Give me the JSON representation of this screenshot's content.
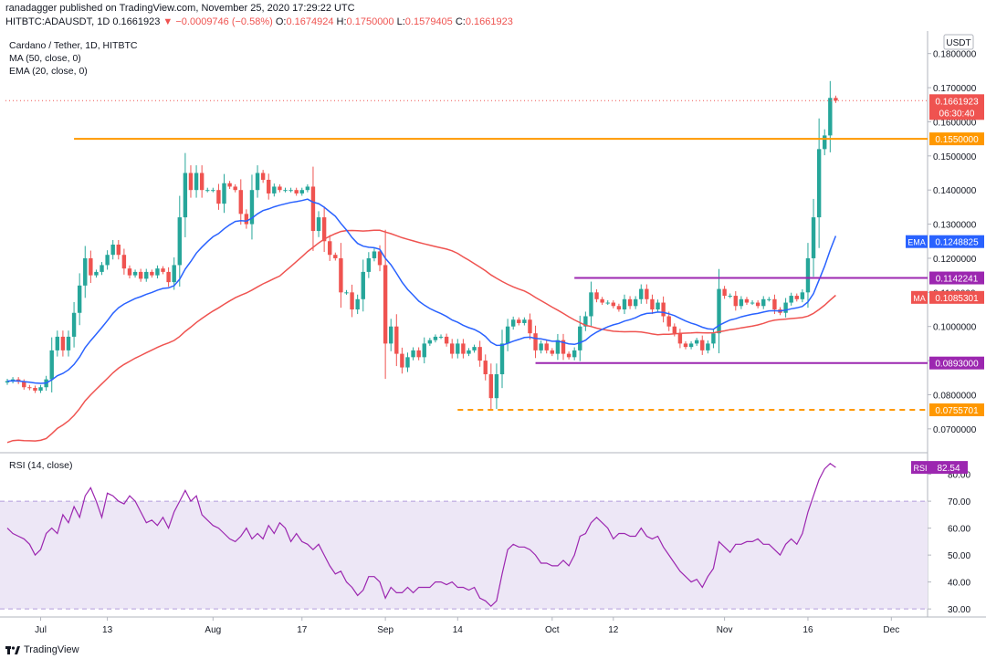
{
  "header": {
    "publisher_line": "ranadagger published on TradingView.com, November 25, 2020 17:29:22 UTC",
    "symbol": "HITBTC:ADAUSDT, 1D",
    "last": "0.1661923",
    "change": "▼ −0.0009746 (−0.58%)",
    "open_label": "O:",
    "open": "0.1674924",
    "high_label": "H:",
    "high": "0.1750000",
    "low_label": "L:",
    "low": "0.1579405",
    "close_label": "C:",
    "close": "0.1661923"
  },
  "legend": {
    "title": "Cardano / Tether, 1D, HITBTC",
    "ma": "MA (50, close, 0)",
    "ema": "EMA (20, close, 0)",
    "rsi": "RSI (14, close)"
  },
  "footer": {
    "brand": "TradingView"
  },
  "colors": {
    "up": "#26a69a",
    "down": "#ef5350",
    "ema": "#2962ff",
    "ma": "#ef5350",
    "orange": "#ff9800",
    "purple": "#9c27b0",
    "rsi": "#9c27b0",
    "rsi_band": "#ede7f6"
  },
  "chart_data": {
    "type": "candlestick",
    "currency": "USDT",
    "price_range": [
      0.063,
      0.185
    ],
    "price_ticks": [
      "0.0700000",
      "0.0800000",
      "0.0900000",
      "0.1000000",
      "0.1100000",
      "0.1200000",
      "0.1300000",
      "0.1400000",
      "0.1500000",
      "0.1600000",
      "0.1700000",
      "0.1800000"
    ],
    "x_labels": [
      {
        "label": "Jul",
        "day": 6
      },
      {
        "label": "13",
        "day": 18
      },
      {
        "label": "Aug",
        "day": 37
      },
      {
        "label": "17",
        "day": 53
      },
      {
        "label": "Sep",
        "day": 68
      },
      {
        "label": "14",
        "day": 81
      },
      {
        "label": "Oct",
        "day": 98
      },
      {
        "label": "12",
        "day": 109
      },
      {
        "label": "Nov",
        "day": 129
      },
      {
        "label": "16",
        "day": 144
      },
      {
        "label": "Dec",
        "day": 159
      }
    ],
    "closes": [
      0.084,
      0.0845,
      0.0838,
      0.0822,
      0.082,
      0.0812,
      0.0822,
      0.0845,
      0.093,
      0.097,
      0.093,
      0.097,
      0.104,
      0.112,
      0.12,
      0.115,
      0.116,
      0.118,
      0.121,
      0.124,
      0.121,
      0.117,
      0.115,
      0.116,
      0.114,
      0.116,
      0.115,
      0.117,
      0.116,
      0.113,
      0.118,
      0.132,
      0.145,
      0.14,
      0.145,
      0.14,
      0.14,
      0.14,
      0.136,
      0.142,
      0.141,
      0.14,
      0.133,
      0.13,
      0.14,
      0.145,
      0.143,
      0.139,
      0.141,
      0.14,
      0.14,
      0.14,
      0.139,
      0.14,
      0.141,
      0.128,
      0.132,
      0.125,
      0.121,
      0.12,
      0.11,
      0.11,
      0.105,
      0.108,
      0.116,
      0.12,
      0.122,
      0.118,
      0.095,
      0.1,
      0.092,
      0.088,
      0.091,
      0.093,
      0.091,
      0.095,
      0.096,
      0.097,
      0.097,
      0.095,
      0.092,
      0.095,
      0.092,
      0.093,
      0.094,
      0.09,
      0.086,
      0.079,
      0.086,
      0.095,
      0.1,
      0.102,
      0.101,
      0.102,
      0.098,
      0.093,
      0.095,
      0.093,
      0.092,
      0.096,
      0.092,
      0.091,
      0.093,
      0.1,
      0.103,
      0.11,
      0.108,
      0.107,
      0.107,
      0.106,
      0.105,
      0.108,
      0.106,
      0.108,
      0.111,
      0.108,
      0.105,
      0.107,
      0.103,
      0.1,
      0.098,
      0.095,
      0.094,
      0.095,
      0.096,
      0.093,
      0.095,
      0.098,
      0.111,
      0.109,
      0.109,
      0.106,
      0.108,
      0.107,
      0.107,
      0.106,
      0.108,
      0.108,
      0.105,
      0.104,
      0.107,
      0.109,
      0.108,
      0.11,
      0.12,
      0.132,
      0.152,
      0.156,
      0.167,
      0.1662
    ],
    "ema20_last": "0.1248825",
    "ma50_last": "0.1085301",
    "last_price_label": "0.1661923",
    "countdown": "06:30:40",
    "levels": [
      {
        "name": "resistance",
        "value": 0.155,
        "label": "0.1550000",
        "color": "#ff9800",
        "style": "solid",
        "from_day": 12
      },
      {
        "name": "range-top",
        "value": 0.1142241,
        "label": "0.1142241",
        "color": "#9c27b0",
        "style": "solid",
        "from_day": 102
      },
      {
        "name": "range-bottom",
        "value": 0.0893,
        "label": "0.0893000",
        "color": "#9c27b0",
        "style": "solid",
        "from_day": 95
      },
      {
        "name": "support",
        "value": 0.0755701,
        "label": "0.0755701",
        "color": "#ff9800",
        "style": "dashed",
        "from_day": 81
      }
    ],
    "ema_label": "EMA",
    "ma_label": "MA",
    "rsi": {
      "range": [
        27,
        88
      ],
      "ticks": [
        "30.00",
        "40.00",
        "50.00",
        "60.00",
        "70.00",
        "80.00"
      ],
      "overbought": 70,
      "oversold": 30,
      "last_label": "RSI",
      "last": "82.54",
      "values": [
        60,
        58,
        57,
        56,
        54,
        50,
        52,
        58,
        60,
        58,
        65,
        62,
        68,
        64,
        72,
        75,
        70,
        64,
        73,
        72,
        70,
        69,
        72,
        70,
        66,
        62,
        63,
        61,
        64,
        60,
        66,
        70,
        74,
        70,
        72,
        65,
        63,
        61,
        60,
        58,
        56,
        55,
        57,
        60,
        56,
        58,
        56,
        61,
        58,
        62,
        60,
        55,
        58,
        55,
        54,
        52,
        54,
        50,
        46,
        43,
        44,
        40,
        38,
        35,
        37,
        42,
        42,
        40,
        34,
        38,
        36,
        36,
        38,
        36,
        38,
        38,
        38,
        40,
        40,
        39,
        40,
        38,
        38,
        37,
        38,
        34,
        33,
        31,
        33,
        43,
        52,
        54,
        53,
        53,
        52,
        50,
        47,
        47,
        46,
        46,
        48,
        46,
        50,
        57,
        58,
        62,
        64,
        62,
        60,
        56,
        58,
        58,
        57,
        57,
        60,
        57,
        56,
        57,
        53,
        50,
        47,
        44,
        42,
        40,
        41,
        38,
        42,
        45,
        55,
        53,
        51,
        54,
        54,
        55,
        55,
        56,
        54,
        54,
        52,
        50,
        54,
        56,
        54,
        58,
        66,
        72,
        78,
        82,
        84,
        82.54
      ]
    }
  }
}
